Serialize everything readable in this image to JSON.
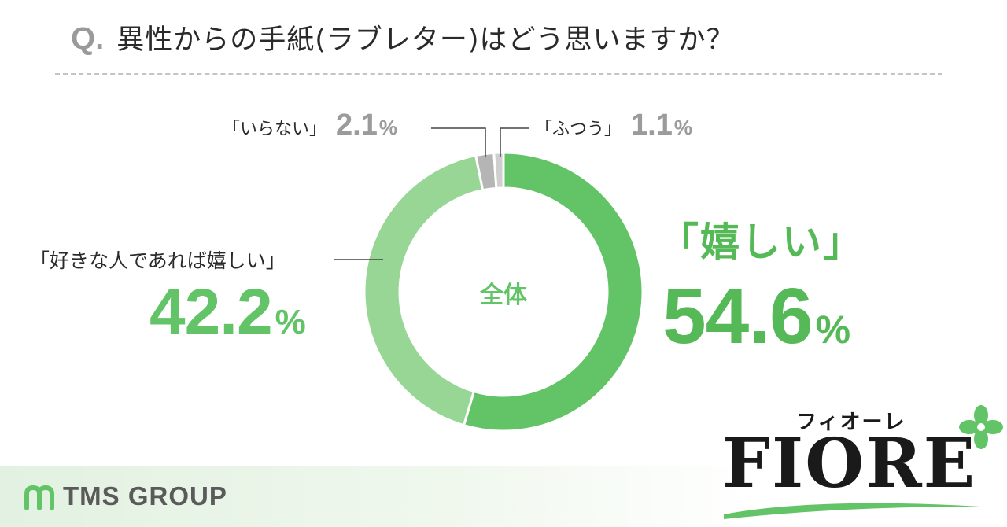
{
  "question": {
    "prefix": "Q.",
    "text": "異性からの手紙(ラブレター)はどう思いますか？"
  },
  "chart_data": {
    "type": "pie",
    "variant": "donut",
    "center_label": "全体",
    "slices": [
      {
        "label": "「嬉しい」",
        "value": 54.6,
        "display": "54.6",
        "color": "#62c466"
      },
      {
        "label": "「好きな人であれば嬉しい」",
        "value": 42.2,
        "display": "42.2",
        "color": "#97d694"
      },
      {
        "label": "「いらない」",
        "value": 2.1,
        "display": "2.1",
        "color": "#b5b5b5"
      },
      {
        "label": "「ふつう」",
        "value": 1.1,
        "display": "1.1",
        "color": "#cfcfcf"
      }
    ],
    "unit": "%",
    "start": "top",
    "direction": "clockwise"
  },
  "branding": {
    "tms": "TMS GROUP",
    "fiore_kana": "フィオーレ",
    "fiore_word": "FIORE"
  },
  "colors": {
    "accent": "#62c466",
    "accent_light": "#97d694",
    "gray": "#9b9b9b"
  }
}
